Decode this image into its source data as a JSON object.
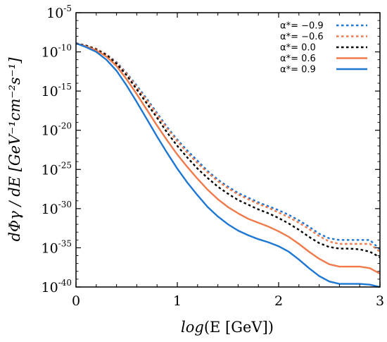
{
  "chart_data": {
    "type": "line",
    "xlabel_parts": {
      "italic": "log",
      "rest": "(E [GeV])"
    },
    "ylabel": "dΦγ / dE [GeV⁻¹cm⁻²s⁻¹]",
    "xlim": [
      0,
      3
    ],
    "ylim": [
      -40,
      -5
    ],
    "y_scale": "log",
    "x_ticks": [
      "0",
      "1",
      "2",
      "3"
    ],
    "y_ticks": [
      {
        "base": "10",
        "exp": "-5"
      },
      {
        "base": "10",
        "exp": "-10"
      },
      {
        "base": "10",
        "exp": "-15"
      },
      {
        "base": "10",
        "exp": "-20"
      },
      {
        "base": "10",
        "exp": "-25"
      },
      {
        "base": "10",
        "exp": "-30"
      },
      {
        "base": "10",
        "exp": "-35"
      },
      {
        "base": "10",
        "exp": "-40"
      }
    ],
    "legend_position": "top-right",
    "x": [
      0,
      0.1,
      0.2,
      0.3,
      0.4,
      0.5,
      0.6,
      0.7,
      0.8,
      0.9,
      1.0,
      1.1,
      1.2,
      1.3,
      1.4,
      1.5,
      1.6,
      1.7,
      1.8,
      1.9,
      2.0,
      2.1,
      2.2,
      2.3,
      2.4,
      2.5,
      2.6,
      2.7,
      2.8,
      2.9,
      3.0
    ],
    "series": [
      {
        "name": "α*= −0.9",
        "color": "#1f77d4",
        "dash": true,
        "values": [
          -8.9,
          -9.2,
          -9.6,
          -10.3,
          -11.3,
          -12.7,
          -14.3,
          -16.0,
          -17.8,
          -19.6,
          -21.2,
          -22.6,
          -23.9,
          -25.2,
          -26.3,
          -27.2,
          -28.0,
          -28.6,
          -29.2,
          -29.7,
          -30.2,
          -30.8,
          -31.5,
          -32.3,
          -33.2,
          -33.8,
          -34.0,
          -34.0,
          -34.0,
          -34.0,
          -35.2
        ]
      },
      {
        "name": "α*= −0.6",
        "color": "#f07a4a",
        "dash": true,
        "values": [
          -8.9,
          -9.2,
          -9.6,
          -10.3,
          -11.4,
          -12.8,
          -14.5,
          -16.2,
          -18.0,
          -19.8,
          -21.4,
          -22.9,
          -24.2,
          -25.4,
          -26.5,
          -27.4,
          -28.2,
          -28.8,
          -29.4,
          -29.9,
          -30.5,
          -31.1,
          -31.8,
          -32.6,
          -33.5,
          -34.2,
          -34.5,
          -34.5,
          -34.5,
          -34.5,
          -35.5
        ]
      },
      {
        "name": "α*=   0.0",
        "color": "#000000",
        "dash": true,
        "values": [
          -8.9,
          -9.2,
          -9.7,
          -10.4,
          -11.5,
          -13.0,
          -14.8,
          -16.6,
          -18.4,
          -20.3,
          -22.0,
          -23.5,
          -24.9,
          -26.1,
          -27.2,
          -28.1,
          -28.9,
          -29.5,
          -30.1,
          -30.6,
          -31.2,
          -31.9,
          -32.7,
          -33.6,
          -34.4,
          -34.9,
          -35.1,
          -35.1,
          -35.2,
          -35.5,
          -36.2
        ]
      },
      {
        "name": "α*=   0.6",
        "color": "#f07a4a",
        "dash": false,
        "values": [
          -8.9,
          -9.3,
          -9.8,
          -10.6,
          -11.8,
          -13.5,
          -15.4,
          -17.4,
          -19.4,
          -21.3,
          -23.1,
          -24.7,
          -26.2,
          -27.6,
          -28.8,
          -29.8,
          -30.6,
          -31.3,
          -31.8,
          -32.3,
          -32.9,
          -33.6,
          -34.5,
          -35.5,
          -36.4,
          -37.1,
          -37.4,
          -37.4,
          -37.4,
          -37.6,
          -38.3
        ]
      },
      {
        "name": "α*=   0.9",
        "color": "#1f77d4",
        "dash": false,
        "values": [
          -8.9,
          -9.4,
          -10.0,
          -11.0,
          -12.4,
          -14.3,
          -16.4,
          -18.6,
          -20.8,
          -22.9,
          -24.9,
          -26.7,
          -28.3,
          -29.8,
          -31.0,
          -32.0,
          -32.8,
          -33.4,
          -33.9,
          -34.3,
          -34.8,
          -35.5,
          -36.5,
          -37.6,
          -38.6,
          -39.3,
          -39.6,
          -39.6,
          -39.6,
          -39.7,
          -40.0
        ]
      }
    ]
  }
}
